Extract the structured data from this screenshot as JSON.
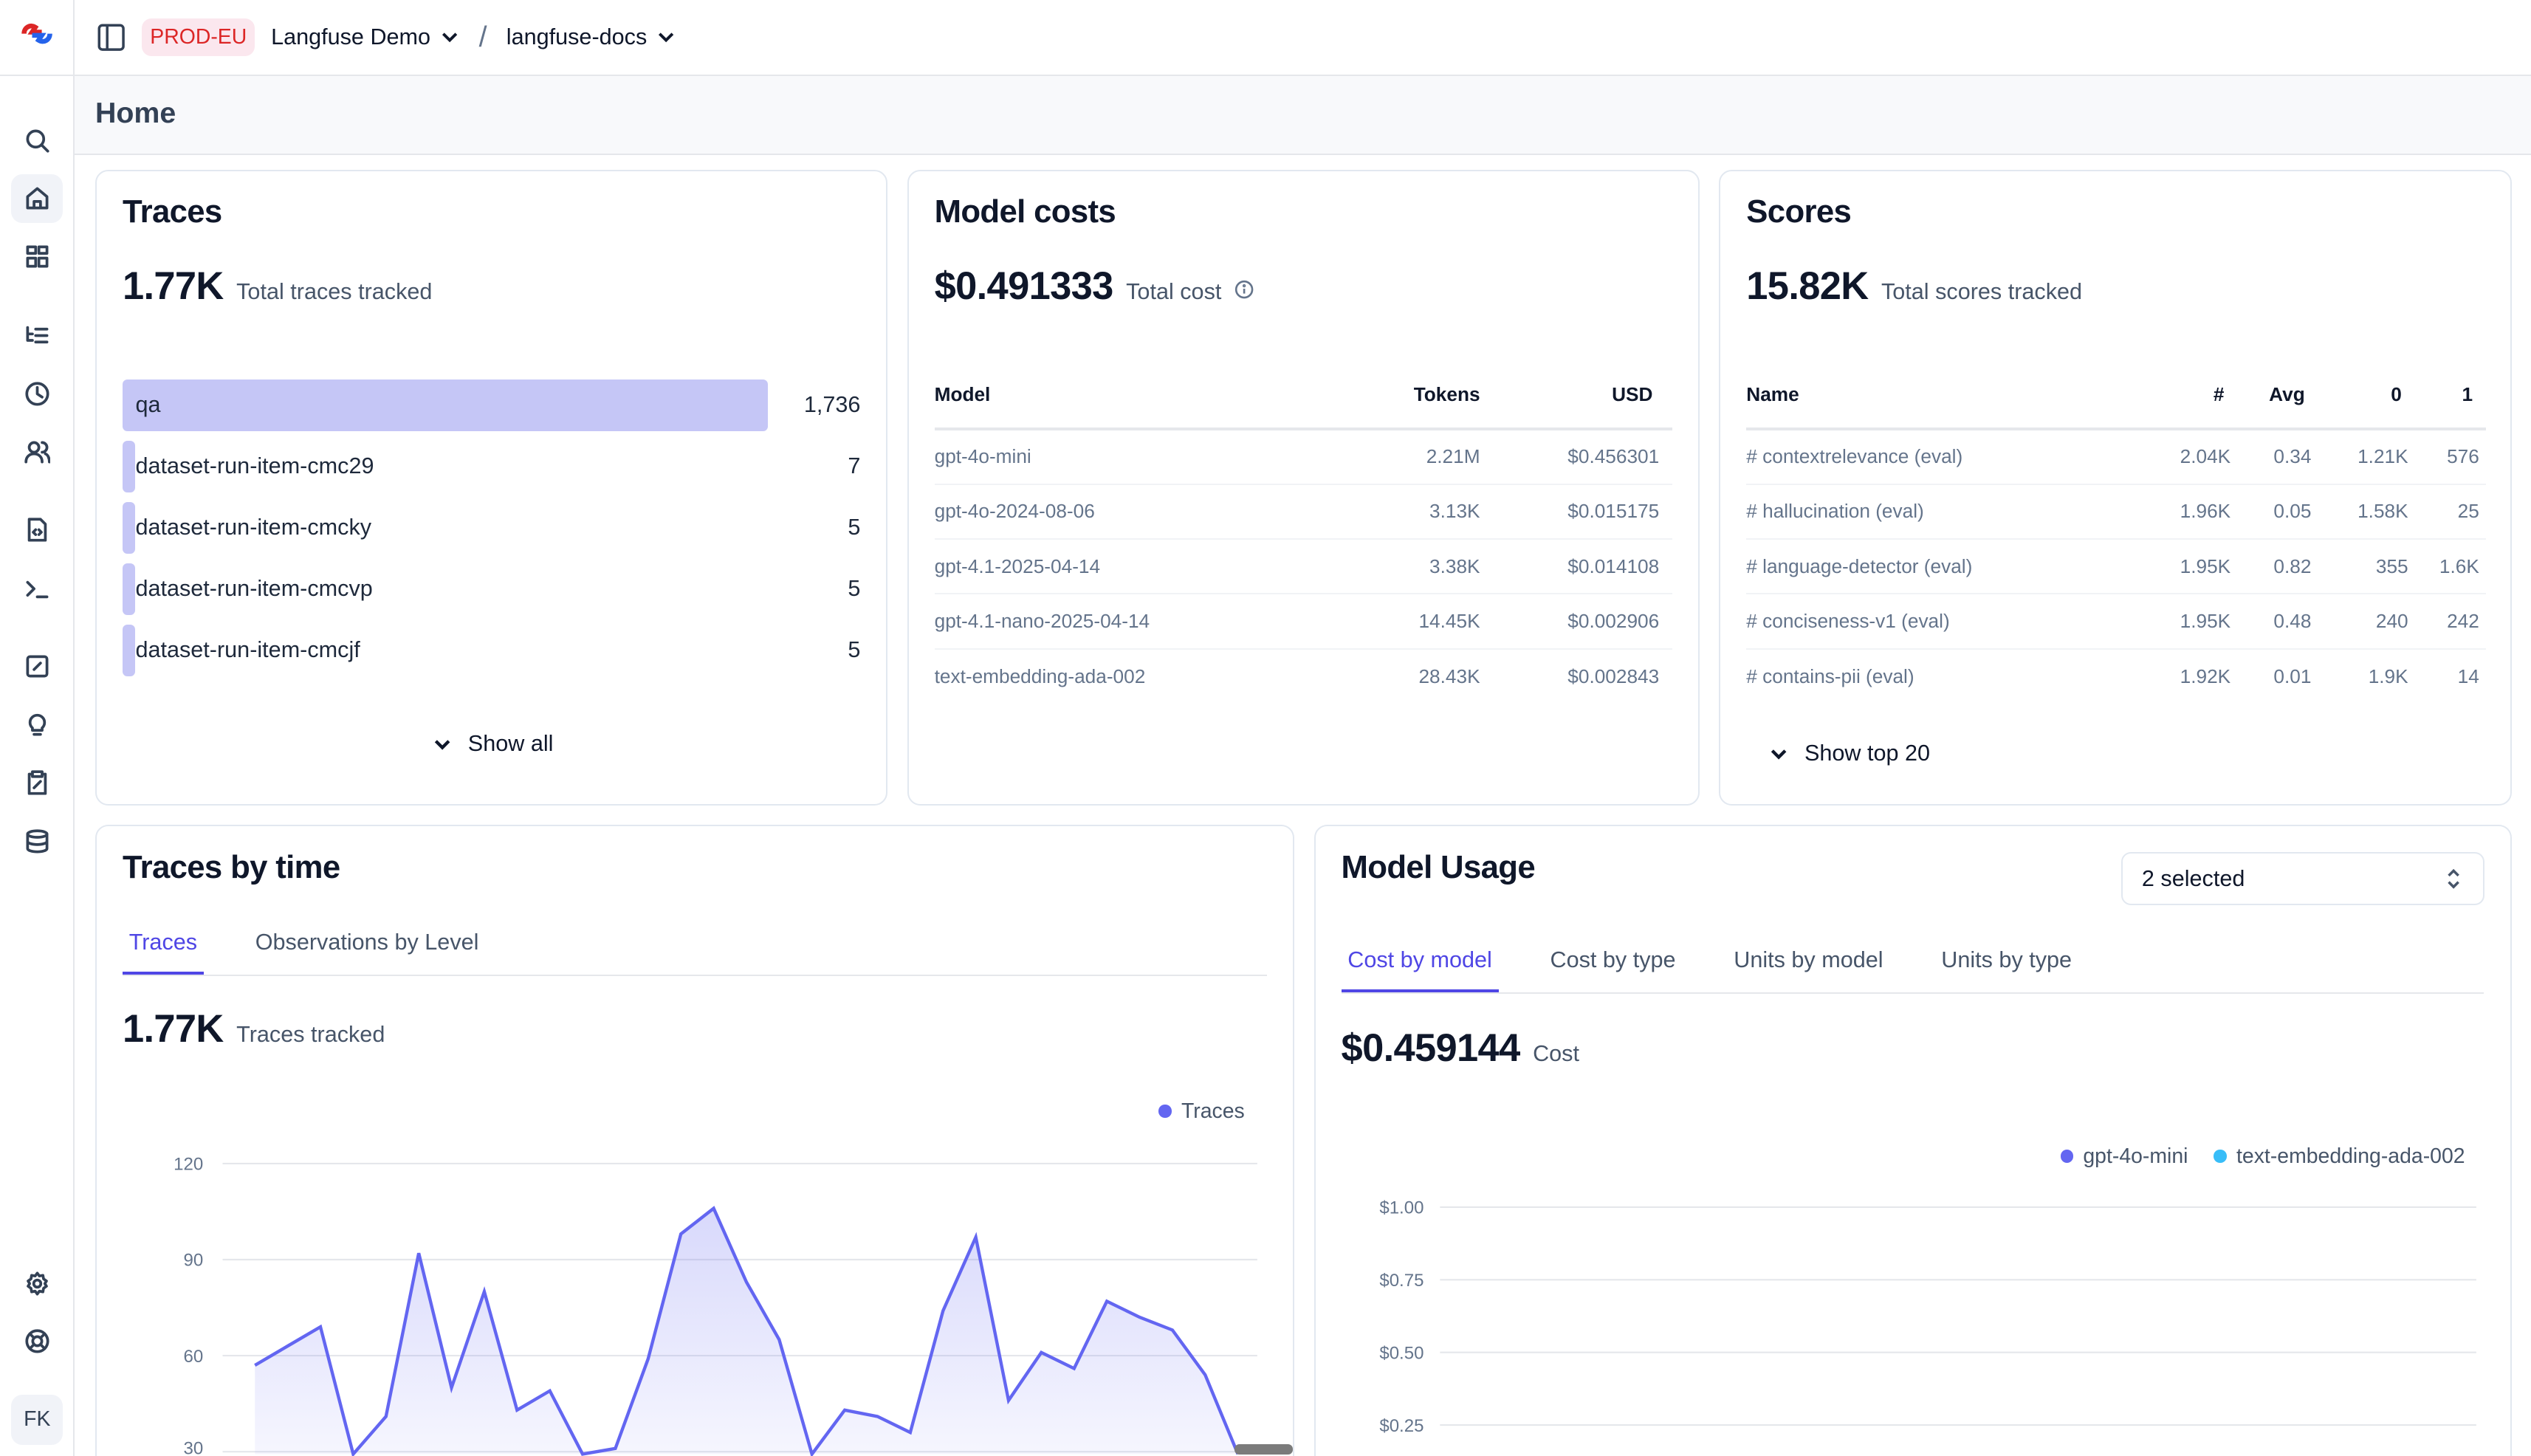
{
  "topbar": {
    "environment": "PROD-EU",
    "organization": "Langfuse Demo",
    "project": "langfuse-docs"
  },
  "page": {
    "title": "Home"
  },
  "sidebar": {
    "items": [
      {
        "icon": "search-icon"
      },
      {
        "icon": "home-icon",
        "active": true
      },
      {
        "icon": "dashboard-icon"
      },
      {
        "icon": "list-tree-icon"
      },
      {
        "icon": "clock-icon"
      },
      {
        "icon": "users-icon"
      },
      {
        "icon": "file-code-icon"
      },
      {
        "icon": "terminal-icon"
      },
      {
        "icon": "percent-square-icon"
      },
      {
        "icon": "lightbulb-icon"
      },
      {
        "icon": "clipboard-pen-icon"
      },
      {
        "icon": "database-icon"
      }
    ],
    "bottom": [
      {
        "icon": "settings-icon"
      },
      {
        "icon": "lifebuoy-icon"
      }
    ],
    "avatar": "FK"
  },
  "traces": {
    "title": "Traces",
    "total": "1.77K",
    "total_label": "Total traces tracked",
    "rows": [
      {
        "name": "qa",
        "value": "1,736",
        "count": 1736
      },
      {
        "name": "dataset-run-item-cmc29",
        "value": "7",
        "count": 7
      },
      {
        "name": "dataset-run-item-cmcky",
        "value": "5",
        "count": 5
      },
      {
        "name": "dataset-run-item-cmcvp",
        "value": "5",
        "count": 5
      },
      {
        "name": "dataset-run-item-cmcjf",
        "value": "5",
        "count": 5
      }
    ],
    "show_all": "Show all"
  },
  "model_costs": {
    "title": "Model costs",
    "total": "$0.491333",
    "total_label": "Total cost",
    "headers": [
      "Model",
      "Tokens",
      "USD"
    ],
    "rows": [
      [
        "gpt-4o-mini",
        "2.21M",
        "$0.456301"
      ],
      [
        "gpt-4o-2024-08-06",
        "3.13K",
        "$0.015175"
      ],
      [
        "gpt-4.1-2025-04-14",
        "3.38K",
        "$0.014108"
      ],
      [
        "gpt-4.1-nano-2025-04-14",
        "14.45K",
        "$0.002906"
      ],
      [
        "text-embedding-ada-002",
        "28.43K",
        "$0.002843"
      ]
    ]
  },
  "scores": {
    "title": "Scores",
    "total": "15.82K",
    "total_label": "Total scores tracked",
    "headers": [
      "Name",
      "#",
      "Avg",
      "0",
      "1"
    ],
    "rows": [
      [
        "# contextrelevance (eval)",
        "2.04K",
        "0.34",
        "1.21K",
        "576"
      ],
      [
        "# hallucination (eval)",
        "1.96K",
        "0.05",
        "1.58K",
        "25"
      ],
      [
        "# language-detector (eval)",
        "1.95K",
        "0.82",
        "355",
        "1.6K"
      ],
      [
        "# conciseness-v1 (eval)",
        "1.95K",
        "0.48",
        "240",
        "242"
      ],
      [
        "# contains-pii (eval)",
        "1.92K",
        "0.01",
        "1.9K",
        "14"
      ]
    ],
    "show_top": "Show top 20"
  },
  "traces_by_time": {
    "title": "Traces by time",
    "tabs": [
      "Traces",
      "Observations by Level"
    ],
    "active_tab": 0,
    "total": "1.77K",
    "total_label": "Traces tracked"
  },
  "model_usage": {
    "title": "Model Usage",
    "select": "2 selected",
    "tabs": [
      "Cost by model",
      "Cost by type",
      "Units by model",
      "Units by type"
    ],
    "active_tab": 0,
    "total": "$0.459144",
    "total_label": "Cost"
  },
  "chart_data": [
    {
      "type": "area",
      "series": [
        {
          "name": "Traces",
          "color": "#6366f1",
          "values": [
            57,
            63,
            69,
            10,
            41,
            92,
            50,
            80,
            43,
            49,
            15,
            31,
            59,
            98,
            106,
            83,
            65,
            12,
            43,
            41,
            36,
            74,
            97,
            46,
            61,
            56,
            77,
            72,
            68,
            54,
            15
          ]
        }
      ],
      "yticks": [
        "120",
        "90",
        "60",
        "30"
      ],
      "ylim": [
        0,
        120
      ],
      "grid": true,
      "legend": "top-right"
    },
    {
      "type": "line",
      "series": [
        {
          "name": "gpt-4o-mini",
          "color": "#6366f1"
        },
        {
          "name": "text-embedding-ada-002",
          "color": "#38bdf8"
        }
      ],
      "yticks": [
        "$1.00",
        "$0.75",
        "$0.50",
        "$0.25"
      ],
      "ylim": [
        0,
        1
      ],
      "grid": true,
      "legend": "top-right"
    }
  ]
}
